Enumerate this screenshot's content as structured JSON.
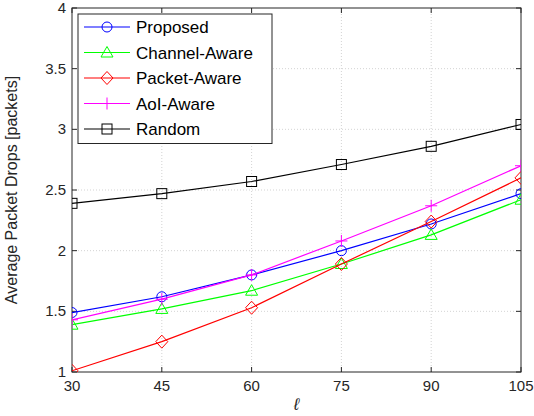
{
  "chart_data": {
    "type": "line",
    "x_label": "ℓ",
    "y_label": "Average Packet Drops [packets]",
    "x": [
      30,
      45,
      60,
      75,
      90,
      105
    ],
    "xlim": [
      30,
      105
    ],
    "xticks": [
      30,
      45,
      60,
      75,
      90,
      105
    ],
    "ylim": [
      1,
      4
    ],
    "yticks": [
      1,
      1.5,
      2,
      2.5,
      3,
      3.5,
      4
    ],
    "grid": true,
    "legend": "top-left",
    "series": [
      {
        "name": "Proposed",
        "color": "#0000ff",
        "marker": "circle",
        "values": [
          1.49,
          1.62,
          1.8,
          2.0,
          2.22,
          2.47
        ]
      },
      {
        "name": "Channel-Aware",
        "color": "#00ff00",
        "marker": "triangle",
        "values": [
          1.39,
          1.52,
          1.67,
          1.89,
          2.13,
          2.42
        ]
      },
      {
        "name": "Packet-Aware",
        "color": "#ff0000",
        "marker": "diamond",
        "values": [
          1.01,
          1.25,
          1.53,
          1.89,
          2.24,
          2.6
        ]
      },
      {
        "name": "AoI-Aware",
        "color": "#ff00ff",
        "marker": "plus",
        "values": [
          1.43,
          1.6,
          1.8,
          2.08,
          2.37,
          2.7
        ]
      },
      {
        "name": "Random",
        "color": "#000000",
        "marker": "square",
        "values": [
          2.39,
          2.47,
          2.57,
          2.71,
          2.86,
          3.04
        ]
      }
    ]
  }
}
